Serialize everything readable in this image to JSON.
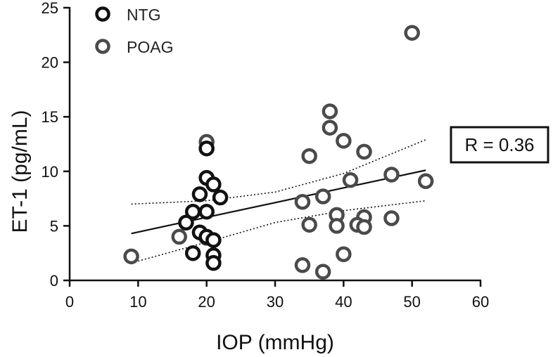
{
  "chart_data": {
    "type": "scatter",
    "xlabel": "IOP (mmHg)",
    "ylabel": "ET-1 (pg/mL)",
    "xlim": [
      0,
      60
    ],
    "ylim": [
      0,
      25
    ],
    "xticks": [
      0,
      10,
      20,
      30,
      40,
      50,
      60
    ],
    "yticks": [
      0,
      5,
      10,
      15,
      20,
      25
    ],
    "grid": false,
    "legend_position": "top-left",
    "annotation": "R = 0.36",
    "series": [
      {
        "name": "NTG",
        "color": "#111111",
        "points": [
          {
            "x": 20,
            "y": 12.1
          },
          {
            "x": 20,
            "y": 9.4
          },
          {
            "x": 21,
            "y": 8.8
          },
          {
            "x": 19,
            "y": 7.9
          },
          {
            "x": 22,
            "y": 7.6
          },
          {
            "x": 18,
            "y": 6.3
          },
          {
            "x": 20,
            "y": 6.3
          },
          {
            "x": 17,
            "y": 5.3
          },
          {
            "x": 19,
            "y": 4.4
          },
          {
            "x": 20,
            "y": 4.0
          },
          {
            "x": 21,
            "y": 3.7
          },
          {
            "x": 18,
            "y": 2.5
          },
          {
            "x": 21,
            "y": 2.3
          },
          {
            "x": 21,
            "y": 1.6
          }
        ]
      },
      {
        "name": "POAG",
        "color": "#4a4a4a",
        "points": [
          {
            "x": 50,
            "y": 22.7
          },
          {
            "x": 20,
            "y": 12.7
          },
          {
            "x": 38,
            "y": 15.5
          },
          {
            "x": 38,
            "y": 14.0
          },
          {
            "x": 40,
            "y": 12.8
          },
          {
            "x": 43,
            "y": 11.8
          },
          {
            "x": 35,
            "y": 11.4
          },
          {
            "x": 47,
            "y": 9.7
          },
          {
            "x": 52,
            "y": 9.1
          },
          {
            "x": 41,
            "y": 9.2
          },
          {
            "x": 37,
            "y": 7.7
          },
          {
            "x": 34,
            "y": 7.2
          },
          {
            "x": 39,
            "y": 6.0
          },
          {
            "x": 43,
            "y": 5.8
          },
          {
            "x": 47,
            "y": 5.7
          },
          {
            "x": 35,
            "y": 5.1
          },
          {
            "x": 39,
            "y": 5.0
          },
          {
            "x": 42,
            "y": 5.1
          },
          {
            "x": 43,
            "y": 4.9
          },
          {
            "x": 16,
            "y": 4.0
          },
          {
            "x": 20,
            "y": 3.9
          },
          {
            "x": 9,
            "y": 2.2
          },
          {
            "x": 40,
            "y": 2.4
          },
          {
            "x": 34,
            "y": 1.4
          },
          {
            "x": 37,
            "y": 0.8
          }
        ]
      }
    ],
    "regression_line": {
      "x": [
        9,
        52
      ],
      "y": [
        4.3,
        10.1
      ]
    },
    "confidence_band": {
      "upper": [
        {
          "x": 9,
          "y": 7.0
        },
        {
          "x": 20,
          "y": 7.3
        },
        {
          "x": 30,
          "y": 8.1
        },
        {
          "x": 40,
          "y": 9.8
        },
        {
          "x": 52,
          "y": 12.9
        }
      ],
      "lower": [
        {
          "x": 9,
          "y": 1.6
        },
        {
          "x": 20,
          "y": 3.5
        },
        {
          "x": 30,
          "y": 5.3
        },
        {
          "x": 40,
          "y": 6.4
        },
        {
          "x": 52,
          "y": 7.3
        }
      ]
    }
  }
}
